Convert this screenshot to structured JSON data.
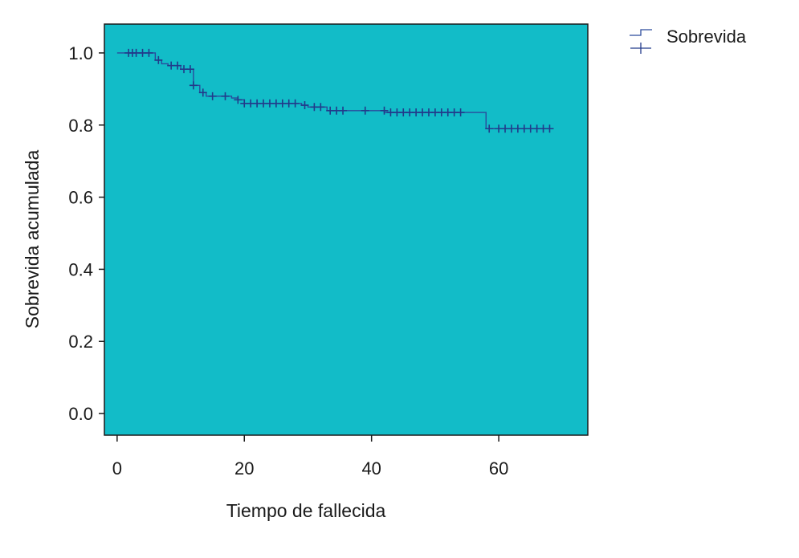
{
  "chart_data": {
    "type": "line",
    "subtype": "kaplan-meier step",
    "xlabel": "Tiempo de fallecida",
    "ylabel": "Sobrevida acumulada",
    "xlim": [
      -2,
      74
    ],
    "ylim": [
      -0.06,
      1.08
    ],
    "x_ticks": [
      0,
      20,
      40,
      60
    ],
    "x_tick_labels": [
      "0",
      "20",
      "40",
      "60"
    ],
    "y_ticks": [
      0.0,
      0.2,
      0.4,
      0.6,
      0.8,
      1.0
    ],
    "y_tick_labels": [
      "0.0",
      "0.2",
      "0.4",
      "0.6",
      "0.8",
      "1.0"
    ],
    "grid": false,
    "legend_position": "outside-top-right",
    "colors": {
      "plot_background": "#12BCC8",
      "line": "#2B4A9C",
      "censor": "#223A8A",
      "axis": "#1a1a1a"
    },
    "series": [
      {
        "name": "Sobrevida",
        "steps": [
          {
            "x": 0,
            "y": 1.0
          },
          {
            "x": 6,
            "y": 0.98
          },
          {
            "x": 7,
            "y": 0.97
          },
          {
            "x": 8,
            "y": 0.965
          },
          {
            "x": 10,
            "y": 0.955
          },
          {
            "x": 12,
            "y": 0.91
          },
          {
            "x": 13,
            "y": 0.89
          },
          {
            "x": 14,
            "y": 0.88
          },
          {
            "x": 18,
            "y": 0.875
          },
          {
            "x": 19,
            "y": 0.87
          },
          {
            "x": 20,
            "y": 0.86
          },
          {
            "x": 29,
            "y": 0.855
          },
          {
            "x": 30,
            "y": 0.85
          },
          {
            "x": 33,
            "y": 0.84
          },
          {
            "x": 42,
            "y": 0.835
          },
          {
            "x": 58,
            "y": 0.79
          }
        ],
        "end_x": 68,
        "censored": [
          {
            "x": 1.8,
            "y": 1.0
          },
          {
            "x": 2.4,
            "y": 1.0
          },
          {
            "x": 3.0,
            "y": 1.0
          },
          {
            "x": 4.0,
            "y": 1.0
          },
          {
            "x": 5.0,
            "y": 1.0
          },
          {
            "x": 6.5,
            "y": 0.98
          },
          {
            "x": 8.5,
            "y": 0.965
          },
          {
            "x": 9.5,
            "y": 0.965
          },
          {
            "x": 10.5,
            "y": 0.955
          },
          {
            "x": 11.5,
            "y": 0.955
          },
          {
            "x": 12.0,
            "y": 0.91
          },
          {
            "x": 13.5,
            "y": 0.89
          },
          {
            "x": 15.0,
            "y": 0.88
          },
          {
            "x": 17.0,
            "y": 0.88
          },
          {
            "x": 19.0,
            "y": 0.87
          },
          {
            "x": 20.0,
            "y": 0.86
          },
          {
            "x": 21.0,
            "y": 0.86
          },
          {
            "x": 22.0,
            "y": 0.86
          },
          {
            "x": 23.0,
            "y": 0.86
          },
          {
            "x": 24.0,
            "y": 0.86
          },
          {
            "x": 25.0,
            "y": 0.86
          },
          {
            "x": 26.0,
            "y": 0.86
          },
          {
            "x": 27.0,
            "y": 0.86
          },
          {
            "x": 28.0,
            "y": 0.86
          },
          {
            "x": 29.5,
            "y": 0.855
          },
          {
            "x": 31.0,
            "y": 0.85
          },
          {
            "x": 32.0,
            "y": 0.85
          },
          {
            "x": 33.5,
            "y": 0.84
          },
          {
            "x": 34.5,
            "y": 0.84
          },
          {
            "x": 35.5,
            "y": 0.84
          },
          {
            "x": 39.0,
            "y": 0.84
          },
          {
            "x": 42.0,
            "y": 0.84
          },
          {
            "x": 43.0,
            "y": 0.835
          },
          {
            "x": 44.0,
            "y": 0.835
          },
          {
            "x": 45.0,
            "y": 0.835
          },
          {
            "x": 46.0,
            "y": 0.835
          },
          {
            "x": 47.0,
            "y": 0.835
          },
          {
            "x": 48.0,
            "y": 0.835
          },
          {
            "x": 49.0,
            "y": 0.835
          },
          {
            "x": 50.0,
            "y": 0.835
          },
          {
            "x": 51.0,
            "y": 0.835
          },
          {
            "x": 52.0,
            "y": 0.835
          },
          {
            "x": 53.0,
            "y": 0.835
          },
          {
            "x": 54.0,
            "y": 0.835
          },
          {
            "x": 58.5,
            "y": 0.79
          },
          {
            "x": 60.0,
            "y": 0.79
          },
          {
            "x": 61.0,
            "y": 0.79
          },
          {
            "x": 62.0,
            "y": 0.79
          },
          {
            "x": 63.0,
            "y": 0.79
          },
          {
            "x": 64.0,
            "y": 0.79
          },
          {
            "x": 65.0,
            "y": 0.79
          },
          {
            "x": 66.0,
            "y": 0.79
          },
          {
            "x": 67.0,
            "y": 0.79
          },
          {
            "x": 68.0,
            "y": 0.79
          }
        ]
      }
    ]
  }
}
